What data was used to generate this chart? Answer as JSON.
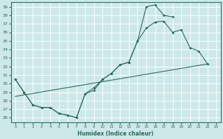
{
  "xlabel": "Humidex (Indice chaleur)",
  "bg_color": "#cde8e8",
  "grid_color": "#ffffff",
  "line_color": "#2a6b5a",
  "xlim": [
    -0.5,
    23.5
  ],
  "ylim": [
    25.5,
    39.5
  ],
  "yticks": [
    26,
    27,
    28,
    29,
    30,
    31,
    32,
    33,
    34,
    35,
    36,
    37,
    38,
    39
  ],
  "xticks": [
    0,
    1,
    2,
    3,
    4,
    5,
    6,
    7,
    8,
    9,
    10,
    11,
    12,
    13,
    14,
    15,
    16,
    17,
    18,
    19,
    20,
    21,
    22,
    23
  ],
  "line1_x": [
    0,
    1,
    2,
    3,
    4,
    5,
    6,
    7,
    8,
    9,
    10,
    11,
    12,
    13,
    14,
    15,
    16,
    17,
    18,
    19,
    20,
    21,
    22
  ],
  "line1_y": [
    30.5,
    29.0,
    27.5,
    27.2,
    27.2,
    26.5,
    26.3,
    26.0,
    28.8,
    29.2,
    30.5,
    31.2,
    32.2,
    32.5,
    35.0,
    36.5,
    37.2,
    37.3,
    36.0,
    36.3,
    34.2,
    33.8,
    32.3
  ],
  "line2_x": [
    0,
    1,
    2,
    3,
    4,
    5,
    6,
    7,
    8,
    9,
    10,
    11,
    12,
    13,
    14,
    15,
    16,
    17,
    18,
    19,
    20,
    21,
    22
  ],
  "line2_y": [
    30.5,
    29.0,
    27.5,
    27.2,
    27.2,
    26.5,
    26.3,
    26.0,
    28.8,
    29.5,
    30.5,
    31.2,
    32.2,
    32.5,
    35.0,
    39.0,
    39.2,
    38.0,
    37.8,
    null,
    null,
    null,
    null
  ],
  "line3_x": [
    0,
    22
  ],
  "line3_y": [
    28.5,
    32.3
  ]
}
